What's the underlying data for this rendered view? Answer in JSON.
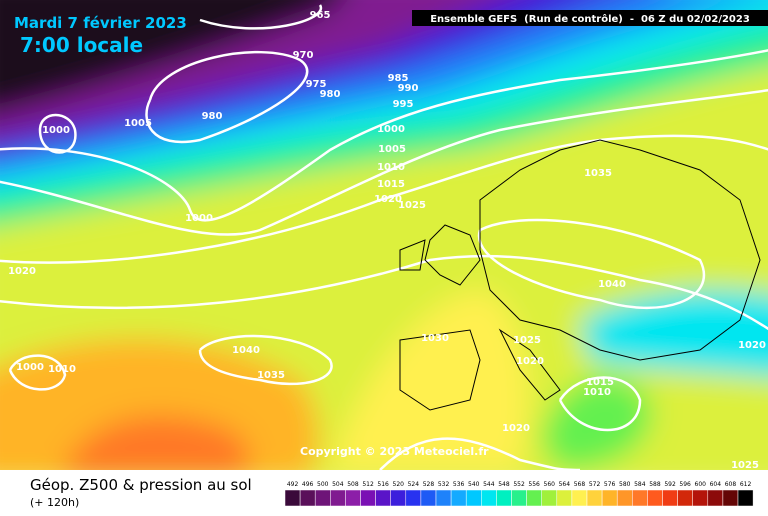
{
  "header": {
    "date": "Mardi 7 février 2023",
    "time": "7:00 locale",
    "run": "Ensemble GEFS  (Run de contrôle)  -  06 Z du 02/02/2023"
  },
  "copyright": "Copyright © 2023 Meteociel.fr",
  "footer": {
    "title": "Géop. Z500 & pression au sol",
    "lead": "(+ 120h)"
  },
  "legend": {
    "labels": [
      492,
      496,
      500,
      504,
      508,
      512,
      516,
      520,
      524,
      528,
      532,
      536,
      540,
      544,
      548,
      552,
      556,
      560,
      564,
      568,
      572,
      576,
      580,
      584,
      588,
      592,
      596,
      600,
      604,
      608,
      612
    ],
    "colors": [
      "#3a0a3a",
      "#5a0f5a",
      "#6e1478",
      "#801a90",
      "#8c1ea8",
      "#7a10b4",
      "#5a14c8",
      "#3c1edc",
      "#2832f0",
      "#1e5af5",
      "#1e82fa",
      "#14aaff",
      "#00c8ff",
      "#00e6f0",
      "#00f0c0",
      "#28f08c",
      "#64f050",
      "#a0f03c",
      "#dcf03c",
      "#fff050",
      "#ffd23c",
      "#ffb428",
      "#ff9628",
      "#ff7828",
      "#ff5a1e",
      "#f03c14",
      "#d2280a",
      "#b4140a",
      "#8c0a0a",
      "#640505",
      "#000000"
    ]
  },
  "isobars": [
    "965",
    "970",
    "975",
    "980",
    "985",
    "990",
    "995",
    "1000",
    "1005",
    "1010",
    "1015",
    "1020",
    "1025",
    "1000",
    "1005",
    "980",
    "1000",
    "1020",
    "1040",
    "1035",
    "1030",
    "1040",
    "1035",
    "1025",
    "1020",
    "1015",
    "1010",
    "1020",
    "1020",
    "1025",
    "1000",
    "1010"
  ]
}
